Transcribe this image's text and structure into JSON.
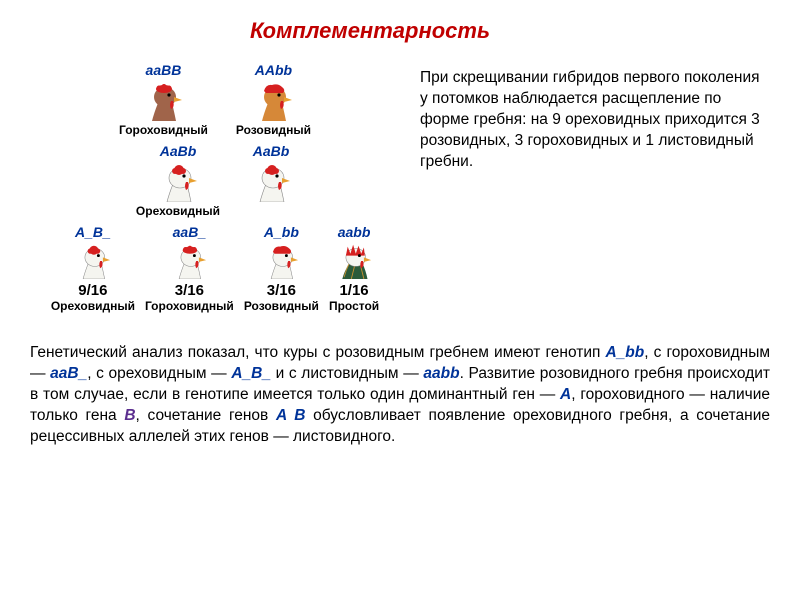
{
  "title": "Комплементарность",
  "diagram": {
    "parents": [
      {
        "genotype": "aaBB",
        "phenotype": "Гороховидный",
        "head": "brown",
        "comb": "pea"
      },
      {
        "genotype": "AAbb",
        "phenotype": "Розовидный",
        "head": "orange",
        "comb": "rose"
      }
    ],
    "f1": [
      {
        "genotype": "AaBb",
        "phenotype": "Ореховидный",
        "head": "white",
        "comb": "walnut"
      },
      {
        "genotype": "AaBb",
        "phenotype": "",
        "head": "white",
        "comb": "walnut"
      }
    ],
    "f2": [
      {
        "genotype": "A_B_",
        "ratio": "9/16",
        "phenotype": "Ореховидный",
        "head": "white",
        "comb": "walnut"
      },
      {
        "genotype": "aaB_",
        "ratio": "3/16",
        "phenotype": "Гороховидный",
        "head": "white",
        "comb": "pea"
      },
      {
        "genotype": "A_bb",
        "ratio": "3/16",
        "phenotype": "Розовидный",
        "head": "white",
        "comb": "rose"
      },
      {
        "genotype": "aabb",
        "ratio": "1/16",
        "phenotype": "Простой",
        "head": "rooster",
        "comb": "single"
      }
    ]
  },
  "sidetext": "При скрещивании гибридов первого поколения у потомков наблюдается расщепление по форме гребня: на 9 ореховидных приходится 3 розовидных, 3 гороховидных и 1 листовидный гребни.",
  "bottom": {
    "p1a": "Генетический  анализ  показал, что куры с розовидным гребнем имеют генотип ",
    "g1": "A_bb",
    "p1b": ", с гороховидным — ",
    "g2": "aaB_",
    "p1c": ", с ореховидным — ",
    "g3": "A_B_",
    "p1d": " и с листовидным — ",
    "g4": "aabb",
    "p1e": ". Развитие розовидного гребня происходит в том случае, если в генотипе имеется только один доминантный ген — ",
    "g5": "A",
    "p1f": ", гороховидного — наличие только гена ",
    "g6": "B",
    "p1g": ", сочетание генов ",
    "g7": "A B",
    "p1h": " обусловливает появление ореховидного гребня, а сочетание рецессивных аллелей этих генов — листовидного."
  },
  "colors": {
    "title": "#c00000",
    "genotype": "#003399",
    "geneA": "#003399",
    "geneB": "#5b2e8f",
    "comb": "#d62020",
    "beak": "#e8a030",
    "brownHead": "#a0644a",
    "orangeHead": "#d68838",
    "whiteHead": "#f5f5f0"
  }
}
